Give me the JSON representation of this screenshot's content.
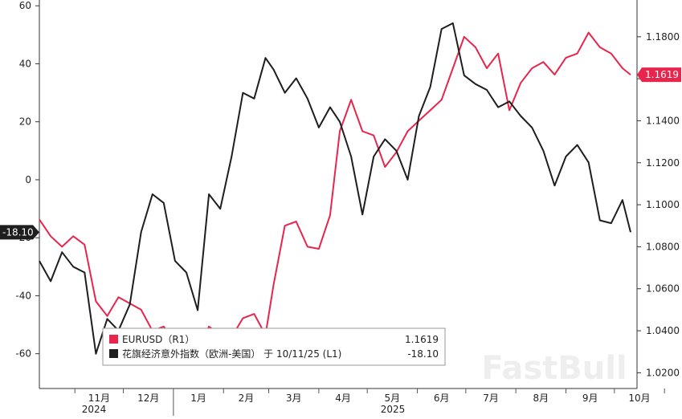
{
  "chart_data": {
    "type": "line",
    "title": "",
    "xlabel": "",
    "ylabel": "",
    "x_month_labels": [
      "11月",
      "12月",
      "1月",
      "2月",
      "3月",
      "4月",
      "5月",
      "6月",
      "7月",
      "8月",
      "9月",
      "10月"
    ],
    "x_year_labels": [
      "2024",
      "2025"
    ],
    "left_axis": {
      "ylim": [
        -72,
        62
      ],
      "ticks": [
        60,
        40,
        20,
        0,
        -20,
        -40,
        -60
      ],
      "tick_labels": [
        "60",
        "40",
        "20",
        "0",
        "-20",
        "-40",
        "-60"
      ]
    },
    "right_axis": {
      "ylim": [
        1.0125,
        1.1975
      ],
      "ticks": [
        1.18,
        1.16,
        1.14,
        1.12,
        1.1,
        1.08,
        1.06,
        1.04,
        1.02
      ],
      "tick_labels": [
        "1.1800",
        "1.1600",
        "1.1400",
        "1.1200",
        "1.1000",
        "1.0800",
        "1.0600",
        "1.0400",
        "1.0200"
      ]
    },
    "series": [
      {
        "name": "EURUSD (R1)",
        "axis": "right",
        "color": "#e8254d",
        "points": [
          [
            "2024-10-10",
            1.093
          ],
          [
            "2024-10-17",
            1.085
          ],
          [
            "2024-10-24",
            1.08
          ],
          [
            "2024-10-31",
            1.085
          ],
          [
            "2024-11-07",
            1.081
          ],
          [
            "2024-11-14",
            1.054
          ],
          [
            "2024-11-21",
            1.047
          ],
          [
            "2024-11-28",
            1.056
          ],
          [
            "2024-12-05",
            1.053
          ],
          [
            "2024-12-12",
            1.05
          ],
          [
            "2024-12-19",
            1.04
          ],
          [
            "2024-12-26",
            1.042
          ],
          [
            "2025-01-02",
            1.035
          ],
          [
            "2025-01-09",
            1.031
          ],
          [
            "2025-01-16",
            1.03
          ],
          [
            "2025-01-23",
            1.042
          ],
          [
            "2025-01-30",
            1.038
          ],
          [
            "2025-02-06",
            1.037
          ],
          [
            "2025-02-13",
            1.046
          ],
          [
            "2025-02-20",
            1.048
          ],
          [
            "2025-02-27",
            1.038
          ],
          [
            "2025-03-04",
            1.062
          ],
          [
            "2025-03-11",
            1.09
          ],
          [
            "2025-03-18",
            1.092
          ],
          [
            "2025-03-25",
            1.08
          ],
          [
            "2025-04-01",
            1.079
          ],
          [
            "2025-04-08",
            1.095
          ],
          [
            "2025-04-14",
            1.135
          ],
          [
            "2025-04-21",
            1.15
          ],
          [
            "2025-04-28",
            1.135
          ],
          [
            "2025-05-05",
            1.133
          ],
          [
            "2025-05-12",
            1.118
          ],
          [
            "2025-05-19",
            1.125
          ],
          [
            "2025-05-26",
            1.135
          ],
          [
            "2025-06-02",
            1.14
          ],
          [
            "2025-06-09",
            1.145
          ],
          [
            "2025-06-16",
            1.15
          ],
          [
            "2025-06-23",
            1.165
          ],
          [
            "2025-06-30",
            1.18
          ],
          [
            "2025-07-07",
            1.175
          ],
          [
            "2025-07-14",
            1.165
          ],
          [
            "2025-07-21",
            1.172
          ],
          [
            "2025-07-28",
            1.145
          ],
          [
            "2025-08-04",
            1.158
          ],
          [
            "2025-08-11",
            1.165
          ],
          [
            "2025-08-18",
            1.168
          ],
          [
            "2025-08-25",
            1.162
          ],
          [
            "2025-09-01",
            1.17
          ],
          [
            "2025-09-08",
            1.172
          ],
          [
            "2025-09-15",
            1.182
          ],
          [
            "2025-09-22",
            1.175
          ],
          [
            "2025-09-29",
            1.172
          ],
          [
            "2025-10-06",
            1.165
          ],
          [
            "2025-10-11",
            1.1619
          ]
        ]
      },
      {
        "name": "花旗经济意外指数（欧洲-美国） 于 10/11/25 (L1)",
        "axis": "left",
        "color": "#1e1e1e",
        "points": [
          [
            "2024-10-10",
            -28
          ],
          [
            "2024-10-17",
            -35
          ],
          [
            "2024-10-24",
            -25
          ],
          [
            "2024-10-31",
            -30
          ],
          [
            "2024-11-07",
            -32
          ],
          [
            "2024-11-14",
            -60
          ],
          [
            "2024-11-21",
            -48
          ],
          [
            "2024-11-28",
            -52
          ],
          [
            "2024-12-05",
            -43
          ],
          [
            "2024-12-12",
            -18
          ],
          [
            "2024-12-19",
            -5
          ],
          [
            "2024-12-26",
            -8
          ],
          [
            "2025-01-02",
            -28
          ],
          [
            "2025-01-09",
            -32
          ],
          [
            "2025-01-16",
            -45
          ],
          [
            "2025-01-23",
            -5
          ],
          [
            "2025-01-30",
            -10
          ],
          [
            "2025-02-06",
            8
          ],
          [
            "2025-02-13",
            30
          ],
          [
            "2025-02-20",
            28
          ],
          [
            "2025-02-27",
            42
          ],
          [
            "2025-03-04",
            38
          ],
          [
            "2025-03-11",
            30
          ],
          [
            "2025-03-18",
            35
          ],
          [
            "2025-03-25",
            28
          ],
          [
            "2025-04-01",
            18
          ],
          [
            "2025-04-08",
            25
          ],
          [
            "2025-04-14",
            20
          ],
          [
            "2025-04-21",
            8
          ],
          [
            "2025-04-28",
            -12
          ],
          [
            "2025-05-05",
            8
          ],
          [
            "2025-05-12",
            14
          ],
          [
            "2025-05-19",
            10
          ],
          [
            "2025-05-26",
            0
          ],
          [
            "2025-06-02",
            22
          ],
          [
            "2025-06-09",
            32
          ],
          [
            "2025-06-16",
            52
          ],
          [
            "2025-06-23",
            54
          ],
          [
            "2025-06-30",
            36
          ],
          [
            "2025-07-07",
            33
          ],
          [
            "2025-07-14",
            31
          ],
          [
            "2025-07-21",
            25
          ],
          [
            "2025-07-28",
            27
          ],
          [
            "2025-08-04",
            22
          ],
          [
            "2025-08-11",
            18
          ],
          [
            "2025-08-18",
            10
          ],
          [
            "2025-08-25",
            -2
          ],
          [
            "2025-09-01",
            8
          ],
          [
            "2025-09-08",
            12
          ],
          [
            "2025-09-15",
            6
          ],
          [
            "2025-09-22",
            -14
          ],
          [
            "2025-09-29",
            -15
          ],
          [
            "2025-10-06",
            -7
          ],
          [
            "2025-10-11",
            -18.1
          ]
        ]
      }
    ],
    "last_value_tags": {
      "left": "-18.10",
      "right": "1.1619"
    },
    "legend": {
      "placement": "bottom-left",
      "entries": [
        {
          "label": "EURUSD（R1）",
          "value": "1.1619",
          "color": "#e8254d"
        },
        {
          "label": "花旗经济意外指数（欧洲-美国） 于 10/11/25 (L1)",
          "value": "-18.10",
          "color": "#1e1e1e"
        }
      ]
    },
    "grid": false
  },
  "watermark": "FastBull"
}
